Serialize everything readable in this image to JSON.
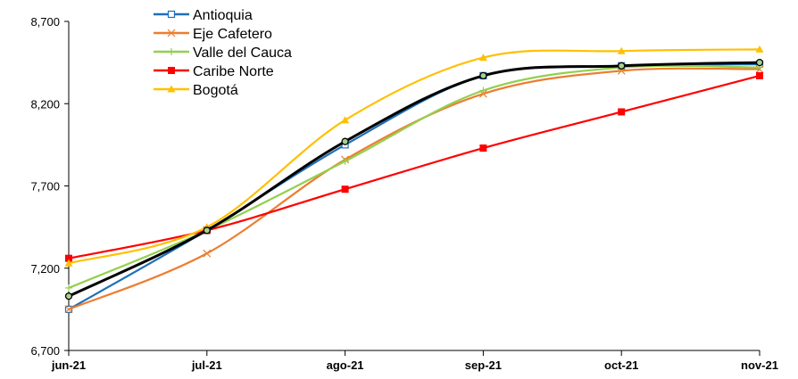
{
  "chart_data": {
    "type": "line",
    "categories": [
      "jun-21",
      "jul-21",
      "ago-21",
      "sep-21",
      "oct-21",
      "nov-21"
    ],
    "ylim": [
      6700,
      8700
    ],
    "yticks": [
      "6,700",
      "7,200",
      "7,700",
      "8,200",
      "8,700"
    ],
    "ytick_values": [
      6700,
      7200,
      7700,
      8200,
      8700
    ],
    "grid": false,
    "legend_position": "top-left",
    "series": [
      {
        "name": "Antioquia",
        "color": "#1f6fb7",
        "marker": "square-open",
        "values": [
          6950,
          7430,
          7950,
          8370,
          8430,
          8440
        ]
      },
      {
        "name": "Eje Cafetero",
        "color": "#ed7d31",
        "marker": "x",
        "values": [
          6950,
          7290,
          7860,
          8260,
          8400,
          8410
        ]
      },
      {
        "name": "Valle del Cauca",
        "color": "#92d050",
        "marker": "plus",
        "values": [
          7080,
          7430,
          7850,
          8280,
          8420,
          8420
        ]
      },
      {
        "name": "Caribe Norte",
        "color": "#ff0000",
        "marker": "square",
        "values": [
          7260,
          7430,
          7680,
          7930,
          8150,
          8370
        ]
      },
      {
        "name": "Bogotá",
        "color": "#ffc000",
        "marker": "triangle",
        "values": [
          7230,
          7450,
          8100,
          8480,
          8520,
          8530
        ]
      },
      {
        "color": "#000000",
        "marker": "circle",
        "values": [
          7030,
          7430,
          7970,
          8370,
          8430,
          8450
        ]
      }
    ]
  }
}
